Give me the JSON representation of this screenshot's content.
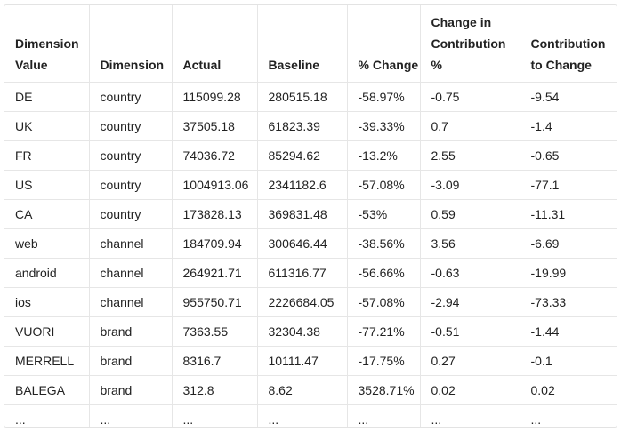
{
  "table": {
    "columns": [
      "Dimension Value",
      "Dimension",
      "Actual",
      "Baseline",
      "% Change",
      "Change in Contribution %",
      "Contribution to Change"
    ],
    "rows": [
      [
        "DE",
        "country",
        "115099.28",
        "280515.18",
        "-58.97%",
        "-0.75",
        "-9.54"
      ],
      [
        "UK",
        "country",
        "37505.18",
        "61823.39",
        "-39.33%",
        "0.7",
        "-1.4"
      ],
      [
        "FR",
        "country",
        "74036.72",
        "85294.62",
        "-13.2%",
        "2.55",
        "-0.65"
      ],
      [
        "US",
        "country",
        "1004913.06",
        "2341182.6",
        "-57.08%",
        "-3.09",
        "-77.1"
      ],
      [
        "CA",
        "country",
        "173828.13",
        "369831.48",
        "-53%",
        "0.59",
        "-11.31"
      ],
      [
        "web",
        "channel",
        "184709.94",
        "300646.44",
        "-38.56%",
        "3.56",
        "-6.69"
      ],
      [
        "android",
        "channel",
        "264921.71",
        "611316.77",
        "-56.66%",
        "-0.63",
        "-19.99"
      ],
      [
        "ios",
        "channel",
        "955750.71",
        "2226684.05",
        "-57.08%",
        "-2.94",
        "-73.33"
      ],
      [
        "VUORI",
        "brand",
        "7363.55",
        "32304.38",
        "-77.21%",
        "-0.51",
        "-1.44"
      ],
      [
        "MERRELL",
        "brand",
        "8316.7",
        "10111.47",
        "-17.75%",
        "0.27",
        "-0.1"
      ],
      [
        "BALEGA",
        "brand",
        "312.8",
        "8.62",
        "3528.71%",
        "0.02",
        "0.02"
      ],
      [
        "...",
        "...",
        "...",
        "...",
        "...",
        "...",
        "..."
      ]
    ]
  }
}
